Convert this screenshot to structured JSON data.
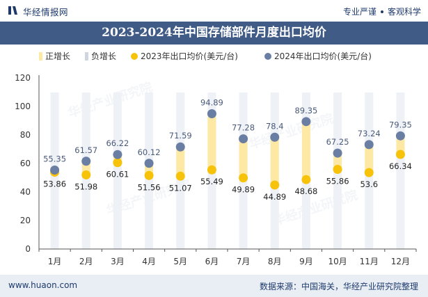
{
  "header": {
    "logo_text": "华经情报网",
    "tagline_left": "专业严谨",
    "tagline_right": "客观科学"
  },
  "footer": {
    "site": "www.huaon.com",
    "source": "数据来源：中国海关，华经产业研究院整理"
  },
  "colors": {
    "title_bg": "#405b86",
    "increase_bar": "#fde9a3",
    "decrease_bar": "#cfd6e2",
    "series_2023": "#f6c20a",
    "series_2024": "#6a7ea3",
    "column_bg": "#eef1f6"
  },
  "chart_data": {
    "type": "line",
    "title": "2023-2024年中国存储部件月度出口均价",
    "categories": [
      "1月",
      "2月",
      "3月",
      "4月",
      "5月",
      "6月",
      "7月",
      "8月",
      "9月",
      "10月",
      "11月",
      "12月"
    ],
    "legend": [
      "正增长",
      "负增长",
      "2023年出口均价(美元/台)",
      "2024年出口均价(美元/台)"
    ],
    "series": [
      {
        "name": "2023年出口均价(美元/台)",
        "values": [
          53.86,
          51.98,
          60.61,
          51.56,
          51.07,
          55.49,
          49.89,
          44.89,
          48.68,
          55.86,
          53.6,
          66.34
        ]
      },
      {
        "name": "2024年出口均价(美元/台)",
        "values": [
          55.35,
          61.57,
          66.22,
          60.12,
          71.59,
          94.89,
          77.28,
          78.4,
          89.35,
          67.25,
          73.24,
          79.35
        ]
      }
    ],
    "y_ticks": [
      "0",
      "20",
      "40",
      "60",
      "80",
      "100",
      "120"
    ],
    "ylim": [
      0,
      120
    ],
    "grid": false,
    "legend_position": "top"
  }
}
